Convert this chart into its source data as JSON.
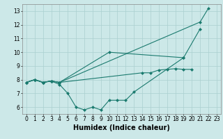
{
  "xlabel": "Humidex (Indice chaleur)",
  "bg_color": "#cce8e8",
  "line_color": "#1a7a6e",
  "grid_color": "#aacfcf",
  "tick_fontsize": 5.5,
  "label_fontsize": 7.0,
  "ylim": [
    5.5,
    13.5
  ],
  "xlim": [
    -0.5,
    23.5
  ],
  "yticks": [
    6,
    7,
    8,
    9,
    10,
    11,
    12,
    13
  ],
  "xticks": [
    0,
    1,
    2,
    3,
    4,
    5,
    6,
    7,
    8,
    9,
    10,
    11,
    12,
    13,
    14,
    15,
    16,
    17,
    18,
    19,
    20,
    21,
    22,
    23
  ],
  "line1_x": [
    0,
    1,
    2,
    3,
    4,
    21,
    22
  ],
  "line1_y": [
    7.8,
    8.0,
    7.8,
    7.9,
    7.8,
    12.2,
    13.2
  ],
  "line2_x": [
    0,
    1,
    2,
    3,
    4,
    10,
    19,
    21
  ],
  "line2_y": [
    7.8,
    8.0,
    7.8,
    7.9,
    7.8,
    10.0,
    9.6,
    11.7
  ],
  "line3_x": [
    0,
    1,
    2,
    3,
    4,
    14,
    15,
    16,
    17,
    18,
    19,
    20
  ],
  "line3_y": [
    7.8,
    8.0,
    7.8,
    7.9,
    7.8,
    8.5,
    8.5,
    8.7,
    8.75,
    8.8,
    8.75,
    8.75
  ],
  "line4_x": [
    0,
    1,
    2,
    3,
    4,
    5,
    6,
    7,
    8,
    9,
    10,
    11,
    12,
    13,
    19
  ],
  "line4_y": [
    7.8,
    8.0,
    7.8,
    7.9,
    7.65,
    7.0,
    6.0,
    5.8,
    6.0,
    5.8,
    6.5,
    6.5,
    6.5,
    7.1,
    9.6
  ]
}
